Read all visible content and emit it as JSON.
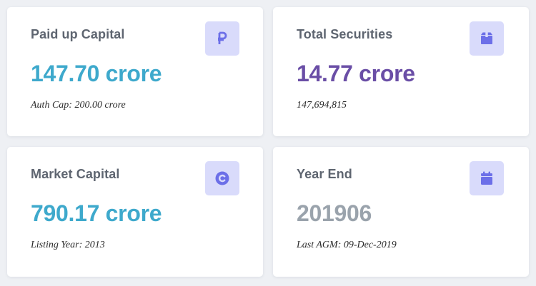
{
  "colors": {
    "accent_blue": "#3ea9cc",
    "accent_purple": "#6a4ea6",
    "value_gray": "#9aa3ac",
    "icon_bg": "#d9dbfb",
    "icon_fg": "#6c6fe8"
  },
  "cards": [
    {
      "title": "Paid up Capital",
      "value": "147.70 crore",
      "sub": "Auth Cap: 200.00 crore",
      "icon": "ruble-icon"
    },
    {
      "title": "Total Securities",
      "value": "14.77 crore",
      "sub": "147,694,815",
      "icon": "box-icon"
    },
    {
      "title": "Market Capital",
      "value": "790.17 crore",
      "sub": "Listing Year: 2013",
      "icon": "copyright-icon"
    },
    {
      "title": "Year End",
      "value": "201906",
      "sub": "Last AGM: 09-Dec-2019",
      "icon": "calendar-icon"
    }
  ]
}
